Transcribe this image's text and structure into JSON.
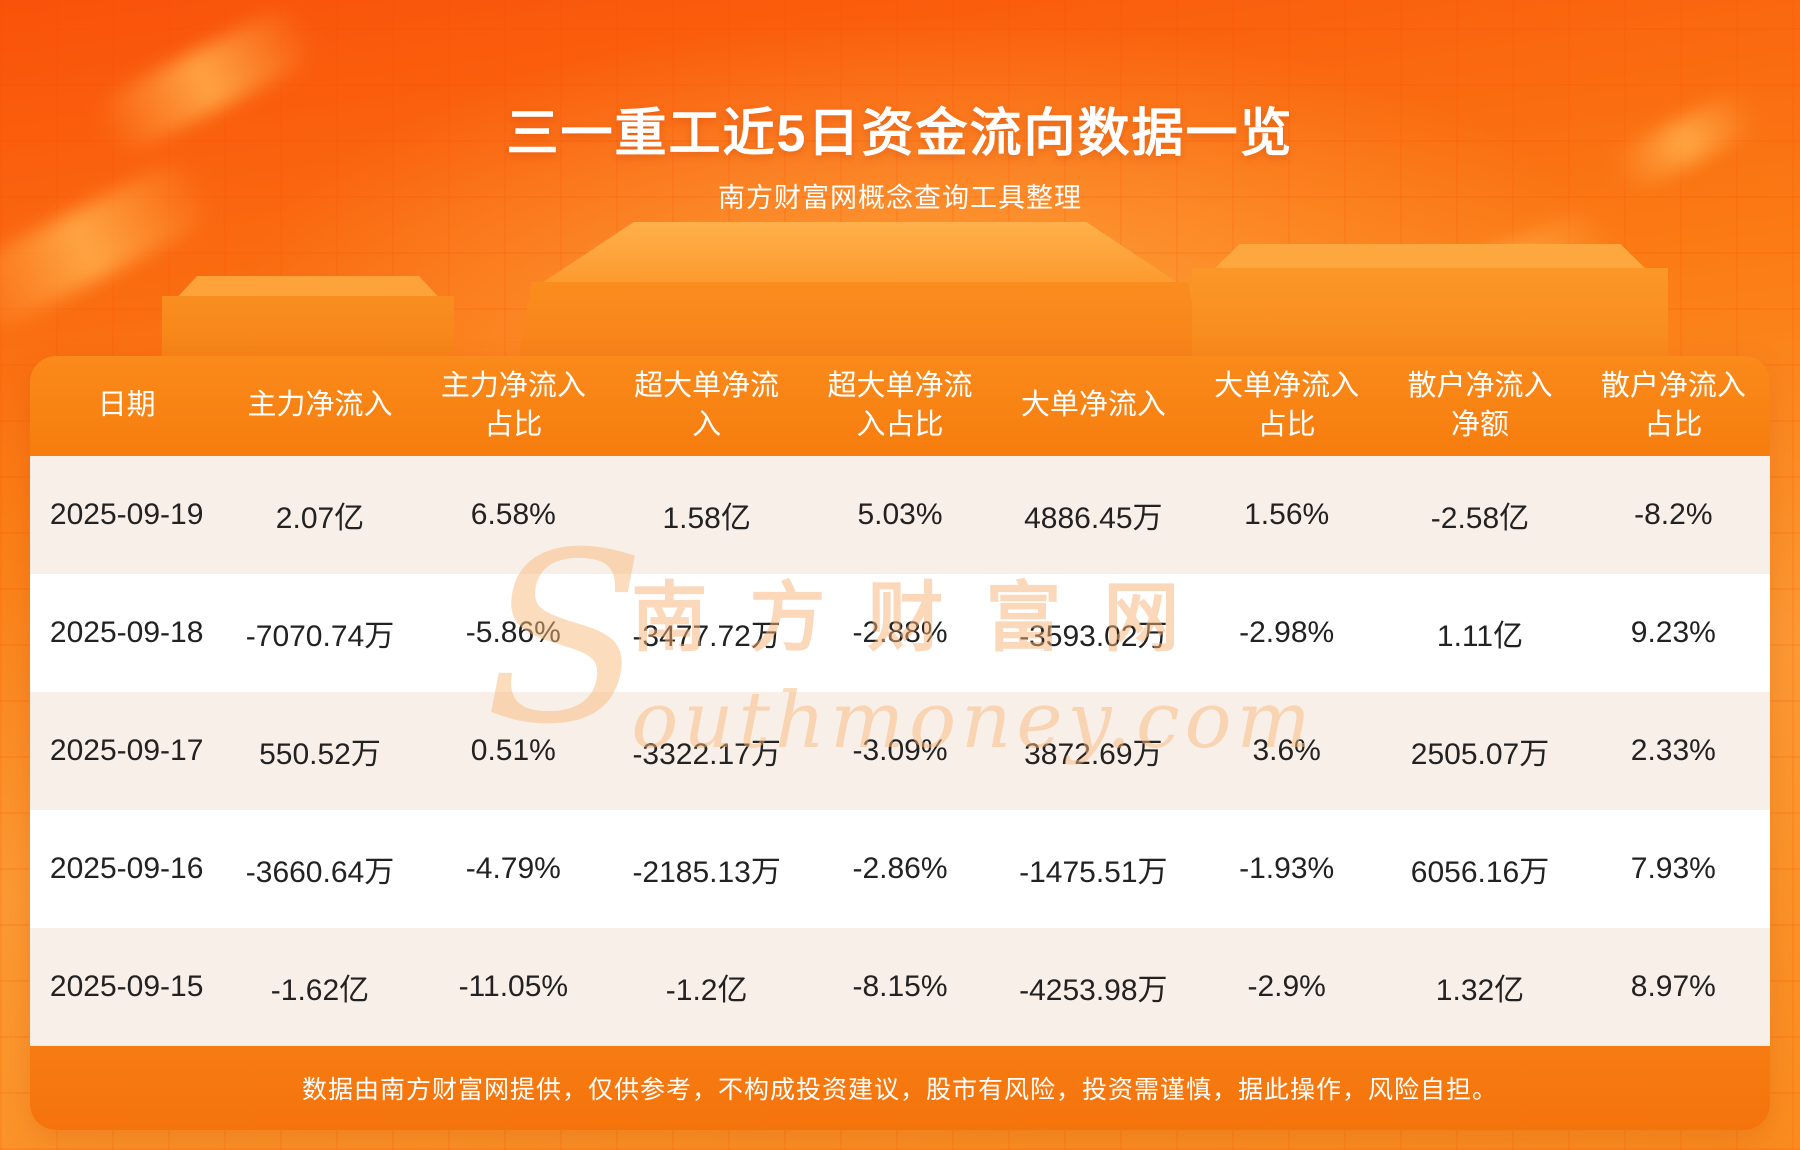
{
  "page": {
    "title": "三一重工近5日资金流向数据一览",
    "subtitle": "南方财富网概念查询工具整理",
    "disclaimer": "数据由南方财富网提供，仅供参考，不构成投资建议，股市有风险，投资需谨慎，据此操作，风险自担。"
  },
  "watermark": {
    "initial": "S",
    "cn": "南方财富网",
    "en": "outhmoney.com"
  },
  "colors": {
    "background_top": "#f9520a",
    "background_bottom": "#fa8c1e",
    "table_header_orange": "#f67d0e",
    "row_alternate": "#f8efe8",
    "row_white": "#ffffff",
    "footer_orange": "#f5730c",
    "text_dark": "#222222",
    "text_white": "#ffffff"
  },
  "chart_data": {
    "type": "table",
    "title": "三一重工近5日资金流向数据一览",
    "columns": [
      "日期",
      "主力净流入",
      "主力净流入占比",
      "超大单净流入",
      "超大单净流入占比",
      "大单净流入",
      "大单净流入占比",
      "散户净流入净额",
      "散户净流入占比"
    ],
    "rows": [
      [
        "2025-09-19",
        "2.07亿",
        "6.58%",
        "1.58亿",
        "5.03%",
        "4886.45万",
        "1.56%",
        "-2.58亿",
        "-8.2%"
      ],
      [
        "2025-09-18",
        "-7070.74万",
        "-5.86%",
        "-3477.72万",
        "-2.88%",
        "-3593.02万",
        "-2.98%",
        "1.11亿",
        "9.23%"
      ],
      [
        "2025-09-17",
        "550.52万",
        "0.51%",
        "-3322.17万",
        "-3.09%",
        "3872.69万",
        "3.6%",
        "2505.07万",
        "2.33%"
      ],
      [
        "2025-09-16",
        "-3660.64万",
        "-4.79%",
        "-2185.13万",
        "-2.86%",
        "-1475.51万",
        "-1.93%",
        "6056.16万",
        "7.93%"
      ],
      [
        "2025-09-15",
        "-1.62亿",
        "-11.05%",
        "-1.2亿",
        "-8.15%",
        "-4253.98万",
        "-2.9%",
        "1.32亿",
        "8.97%"
      ]
    ]
  }
}
